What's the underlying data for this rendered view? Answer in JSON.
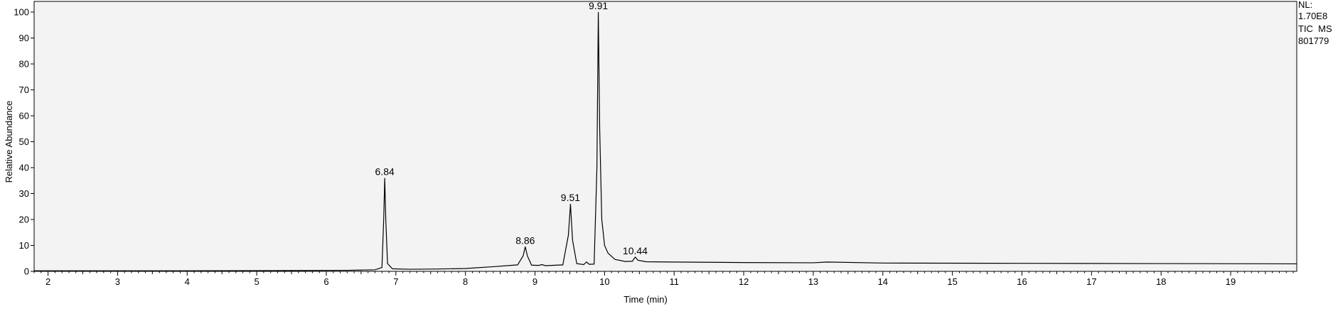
{
  "chart_data": {
    "type": "line",
    "title": "",
    "xlabel": "Time (min)",
    "ylabel": "Relative Abundance",
    "xlim": [
      1.8,
      19.95
    ],
    "ylim": [
      0,
      100
    ],
    "x_ticks": [
      2,
      3,
      4,
      5,
      6,
      7,
      8,
      9,
      10,
      11,
      12,
      13,
      14,
      15,
      16,
      17,
      18,
      19
    ],
    "y_ticks": [
      0,
      10,
      20,
      30,
      40,
      50,
      60,
      70,
      80,
      90,
      100
    ],
    "grid": false,
    "plot_background": "#f3f3f3",
    "line_color": "#000000",
    "series": [
      {
        "x": [
          1.8,
          2.5,
          3.5,
          4.5,
          5.5,
          6.3,
          6.7,
          6.8,
          6.825,
          6.84,
          6.855,
          6.88,
          6.95,
          7.2,
          7.6,
          8.0,
          8.4,
          8.75,
          8.83,
          8.86,
          8.89,
          8.95,
          9.05,
          9.1,
          9.15,
          9.4,
          9.48,
          9.51,
          9.54,
          9.6,
          9.7,
          9.74,
          9.78,
          9.85,
          9.89,
          9.91,
          9.93,
          9.96,
          10.0,
          10.05,
          10.15,
          10.3,
          10.4,
          10.44,
          10.48,
          10.6,
          11.0,
          12.0,
          13.0,
          13.2,
          14.0,
          16.0,
          18.0,
          19.95
        ],
        "y": [
          0.2,
          0.2,
          0.2,
          0.25,
          0.3,
          0.4,
          0.6,
          1.5,
          20,
          36,
          20,
          3,
          1.0,
          0.8,
          0.9,
          1.1,
          1.8,
          2.5,
          6,
          9.5,
          6,
          2.4,
          2.3,
          2.6,
          2.2,
          2.5,
          14,
          26,
          12,
          3.0,
          2.6,
          3.6,
          2.7,
          2.8,
          40,
          100,
          55,
          20,
          10,
          7,
          4.6,
          3.8,
          3.9,
          5.5,
          4.3,
          3.7,
          3.6,
          3.4,
          3.3,
          3.6,
          3.2,
          3.1,
          3.0,
          2.9
        ]
      }
    ],
    "annotations": [
      {
        "text": "6.84",
        "x": 6.84,
        "y": 36
      },
      {
        "text": "8.86",
        "x": 8.86,
        "y": 9.5
      },
      {
        "text": "9.51",
        "x": 9.51,
        "y": 26
      },
      {
        "text": "9.91",
        "x": 9.91,
        "y": 100
      },
      {
        "text": "10.44",
        "x": 10.44,
        "y": 5.5
      }
    ]
  },
  "side_info": {
    "line1": "NL:",
    "line2": "1.70E8",
    "line3": "TIC  MS",
    "line4": "801779"
  }
}
